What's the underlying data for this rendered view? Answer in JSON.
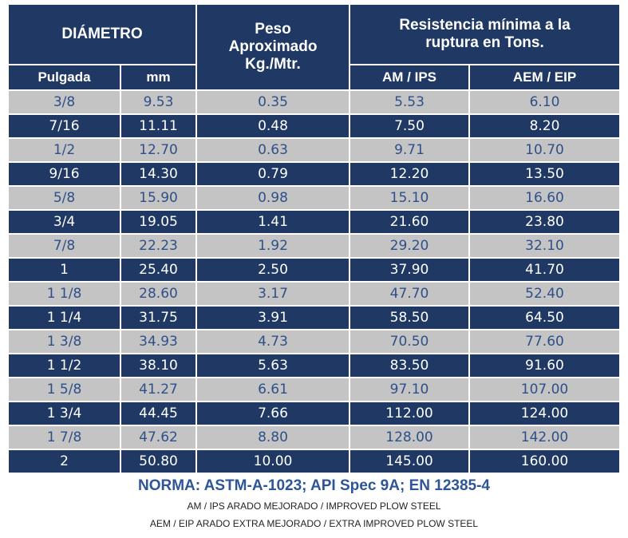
{
  "table": {
    "header": {
      "diametro": "DIÁMETRO",
      "peso": "Peso Aproximado Kg./Mtr.",
      "resistencia": "Resistencia mínima a la ruptura en Tons.",
      "pulgada": "Pulgada",
      "mm": "mm",
      "am": "AM / IPS",
      "aem": "AEM / EIP"
    },
    "rows": [
      [
        "3/8",
        "9.53",
        "0.35",
        "5.53",
        "6.10"
      ],
      [
        "7/16",
        "11.11",
        "0.48",
        "7.50",
        "8.20"
      ],
      [
        "1/2",
        "12.70",
        "0.63",
        "9.71",
        "10.70"
      ],
      [
        "9/16",
        "14.30",
        "0.79",
        "12.20",
        "13.50"
      ],
      [
        "5/8",
        "15.90",
        "0.98",
        "15.10",
        "16.60"
      ],
      [
        "3/4",
        "19.05",
        "1.41",
        "21.60",
        "23.80"
      ],
      [
        "7/8",
        "22.23",
        "1.92",
        "29.20",
        "32.10"
      ],
      [
        "1",
        "25.40",
        "2.50",
        "37.90",
        "41.70"
      ],
      [
        "1 1/8",
        "28.60",
        "3.17",
        "47.70",
        "52.40"
      ],
      [
        "1 1/4",
        "31.75",
        "3.91",
        "58.50",
        "64.50"
      ],
      [
        "1 3/8",
        "34.93",
        "4.73",
        "70.50",
        "77.60"
      ],
      [
        "1 1/2",
        "38.10",
        "5.63",
        "83.50",
        "91.60"
      ],
      [
        "1 5/8",
        "41.27",
        "6.61",
        "97.10",
        "107.00"
      ],
      [
        "1 3/4",
        "44.45",
        "7.66",
        "112.00",
        "124.00"
      ],
      [
        "1 7/8",
        "47.62",
        "8.80",
        "128.00",
        "142.00"
      ],
      [
        "2",
        "50.80",
        "10.00",
        "145.00",
        "160.00"
      ]
    ]
  },
  "footer": {
    "norma": "NORMA: ASTM-A-1023; API Spec 9A; EN 12385-4",
    "note1": "AM / IPS ARADO MEJORADO / IMPROVED PLOW STEEL",
    "note2": "AEM / EIP ARADO EXTRA MEJORADO / EXTRA IMPROVED PLOW STEEL"
  }
}
